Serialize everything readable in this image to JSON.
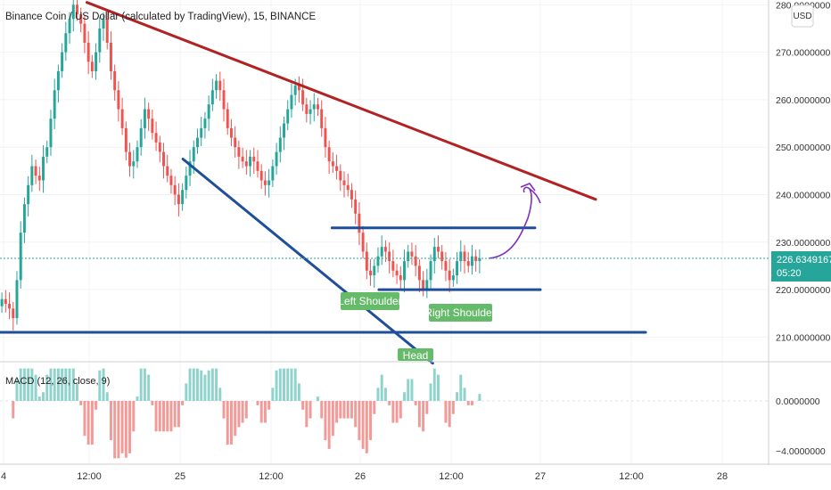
{
  "header": {
    "title": "Binance Coin / US Dollar (calculated by TradingView), 15, BINANCE"
  },
  "currency_button": {
    "label": "USD"
  },
  "price_badge": {
    "value": "226.6349167",
    "countdown": "05:20"
  },
  "macd": {
    "label": "MACD (12, 26, close, 9)"
  },
  "colors": {
    "up": "#26a69a",
    "down": "#ef5350",
    "trend_upper": "#b22222",
    "trend_lower": "#1f4e9a",
    "label_bg": "#66bb6a",
    "badge": "#26a69a",
    "projection": "#7b2fbe"
  },
  "annotations": [
    "Left Shoulder",
    "Head",
    "Right Shoulder"
  ],
  "chart_data": {
    "type": "line",
    "series": [
      {
        "values": [
          218,
          217,
          216,
          214,
          222,
          232,
          238,
          242,
          246,
          244,
          243,
          248,
          250,
          256,
          262,
          266,
          270,
          274,
          277,
          280,
          278,
          276,
          272,
          268,
          266,
          270,
          275,
          277,
          272,
          266,
          262,
          258,
          254,
          249,
          246,
          247,
          250,
          254,
          258,
          256,
          253,
          251,
          249,
          246,
          244,
          242,
          240,
          238,
          241,
          244,
          247,
          250,
          252,
          254,
          256,
          259,
          262,
          264,
          262,
          258,
          254,
          252,
          250,
          248,
          247,
          246,
          248,
          247,
          245,
          243,
          242,
          243,
          246,
          249,
          252,
          255,
          258,
          261,
          263,
          262,
          259,
          257,
          258,
          259,
          258,
          254,
          250,
          247,
          246,
          245,
          243,
          242,
          241,
          239,
          236,
          232,
          228,
          224,
          223,
          225,
          227,
          229,
          228,
          226,
          224,
          223,
          222,
          226,
          228,
          227,
          225,
          222,
          220,
          222,
          226,
          229,
          228,
          226,
          224,
          222,
          223,
          226,
          228,
          226,
          225,
          227,
          226,
          226.6
        ]
      }
    ],
    "y_tick_labels": [
      "280.0000000",
      "270.0000000",
      "260.0000000",
      "250.0000000",
      "240.0000000",
      "230.0000000",
      "220.0000000",
      "210.0000000"
    ],
    "ylim": [
      205,
      281
    ],
    "macd_tick_labels": [
      "0.0000000",
      "−4.0000000"
    ],
    "macd_ylim": [
      -5,
      3
    ],
    "x_tick_labels": [
      "4",
      "12:00",
      "25",
      "12:00",
      "26",
      "12:00",
      "27",
      "12:00",
      "28"
    ],
    "trend_lines": [
      {
        "name": "descending-resistance",
        "from": [
          0.113,
          280.5
        ],
        "to": [
          0.775,
          239
        ]
      },
      {
        "name": "falling-support",
        "from": [
          0.238,
          247.5
        ],
        "to": [
          0.563,
          204.5
        ]
      },
      {
        "name": "neckline-top",
        "from": [
          0.432,
          233
        ],
        "to": [
          0.696,
          233
        ]
      },
      {
        "name": "neckline-bottom",
        "from": [
          0.493,
          220
        ],
        "to": [
          0.703,
          220
        ]
      },
      {
        "name": "base-line",
        "from": [
          0.0,
          211
        ],
        "to": [
          0.84,
          211
        ]
      }
    ],
    "grid": true,
    "legend": "none"
  }
}
